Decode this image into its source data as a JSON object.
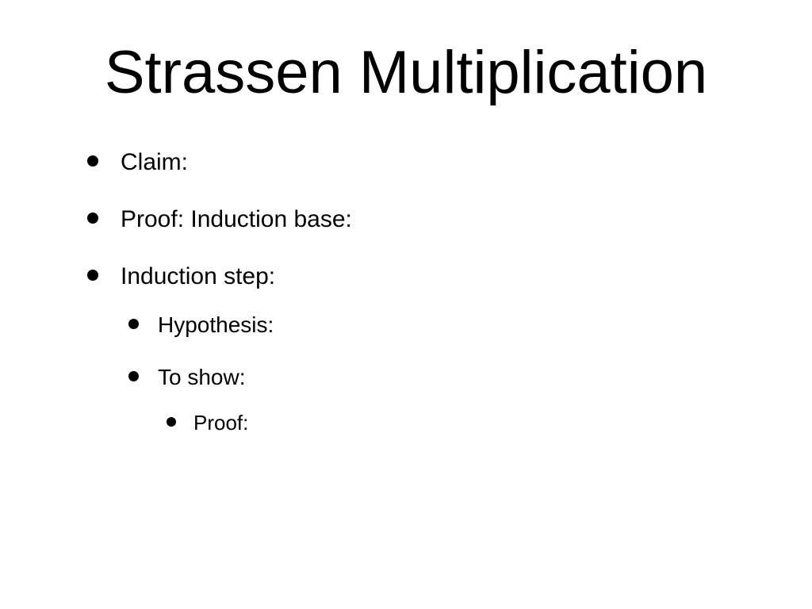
{
  "slide": {
    "title": "Strassen Multiplication",
    "bullets": [
      {
        "text": "Claim:"
      },
      {
        "text": "Proof:  Induction base:"
      },
      {
        "text": "Induction step:",
        "children": [
          {
            "text": "Hypothesis:"
          },
          {
            "text": "To show:",
            "children": [
              {
                "text": "Proof:"
              }
            ]
          }
        ]
      }
    ]
  },
  "style": {
    "background_color": "#ffffff",
    "text_color": "#000000",
    "title_fontsize": 76,
    "level1_fontsize": 30,
    "level2_fontsize": 28,
    "level3_fontsize": 26,
    "bullet_shape": "disc",
    "bullet_color": "#000000",
    "font_family": "Arial"
  }
}
